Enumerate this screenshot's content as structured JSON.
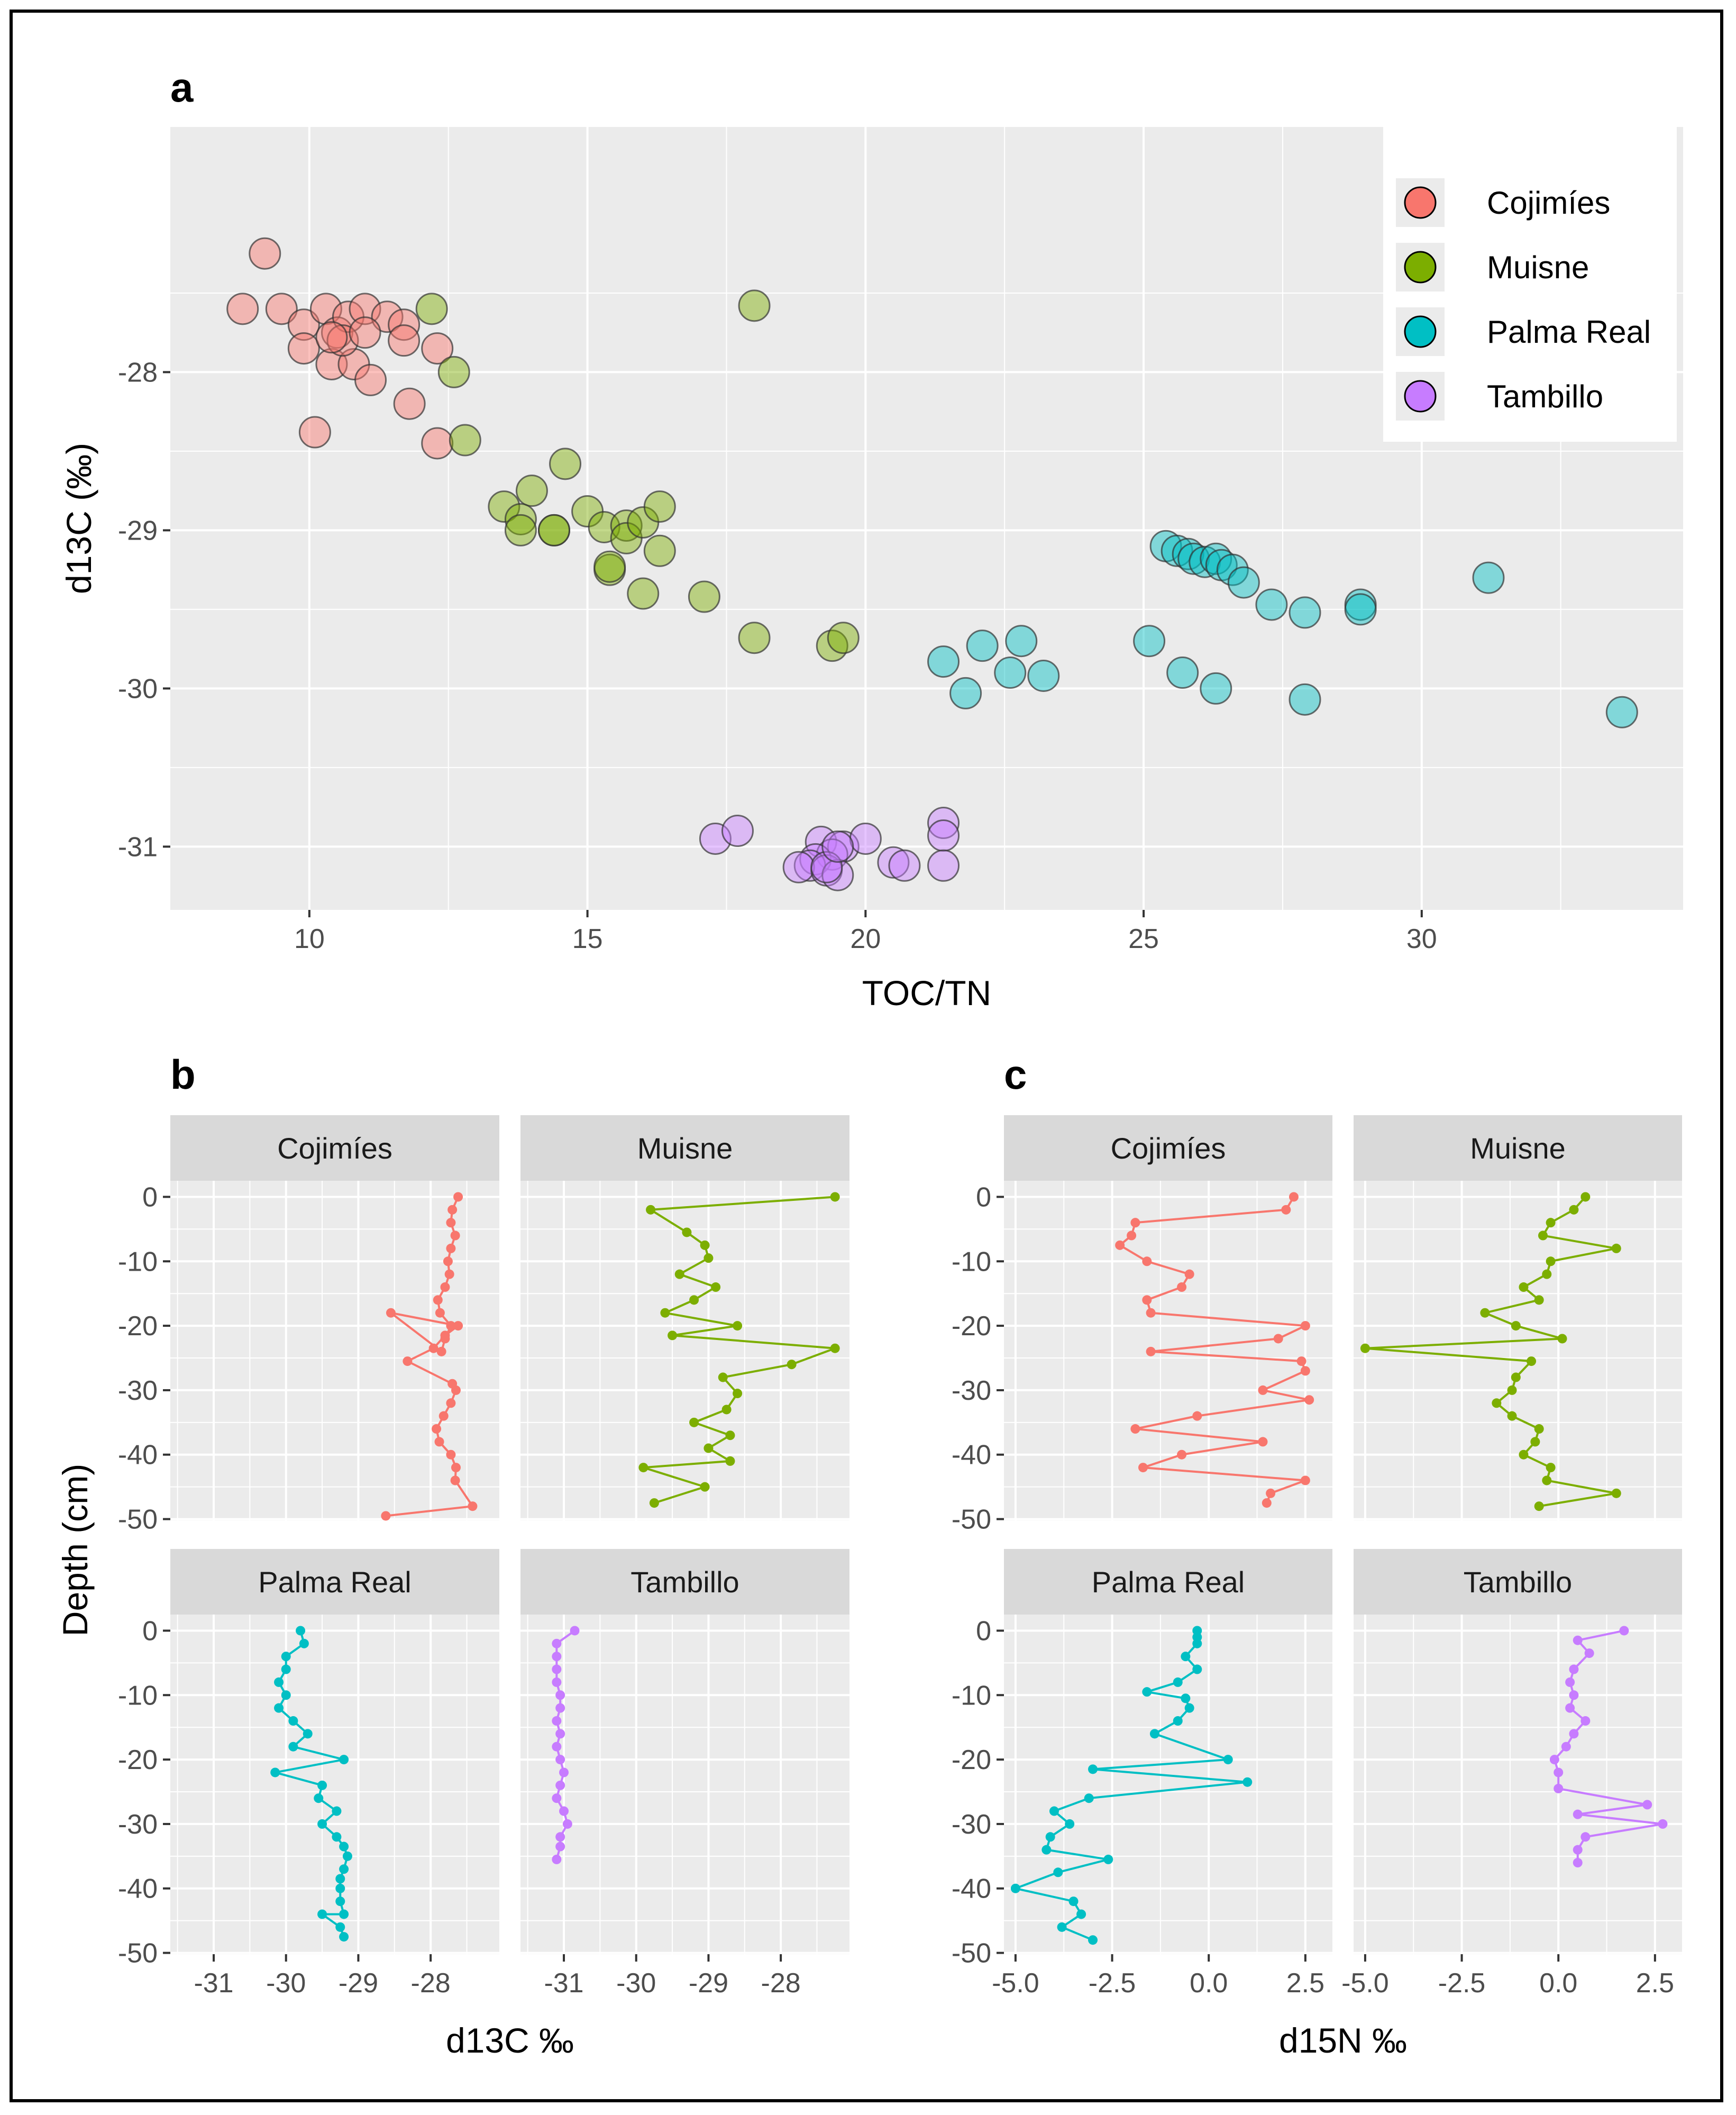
{
  "colors": {
    "Cojimíes": "#F8766D",
    "Muisne": "#7CAE00",
    "Palma Real": "#00BFC4",
    "Tambillo": "#C77CFF"
  },
  "sites": [
    "Cojimíes",
    "Muisne",
    "Palma Real",
    "Tambillo"
  ],
  "chart_data": [
    {
      "id": "a",
      "type": "scatter",
      "panel_label": "a",
      "xlabel": "TOC/TN",
      "ylabel": "d13C (‰)",
      "xlim": [
        7.5,
        34.7
      ],
      "ylim": [
        -31.4,
        -26.45
      ],
      "x_ticks": [
        10,
        15,
        20,
        25,
        30
      ],
      "x_tick_labels": [
        "10",
        "15",
        "20",
        "25",
        "30"
      ],
      "y_ticks": [
        -28,
        -29,
        -30,
        -31
      ],
      "y_tick_labels": [
        "-28",
        "-29",
        "-30",
        "-31"
      ],
      "legend": [
        "Cojimíes",
        "Muisne",
        "Palma Real",
        "Tambillo"
      ],
      "legend_position": "top-right",
      "series": [
        {
          "name": "Cojimíes",
          "points": [
            [
              9.2,
              -27.25
            ],
            [
              8.8,
              -27.6
            ],
            [
              9.5,
              -27.6
            ],
            [
              9.9,
              -27.7
            ],
            [
              10.3,
              -27.6
            ],
            [
              10.5,
              -27.75
            ],
            [
              10.7,
              -27.65
            ],
            [
              11.0,
              -27.6
            ],
            [
              11.4,
              -27.65
            ],
            [
              11.7,
              -27.7
            ],
            [
              9.9,
              -27.85
            ],
            [
              10.4,
              -27.95
            ],
            [
              10.8,
              -27.95
            ],
            [
              11.1,
              -28.05
            ],
            [
              11.7,
              -27.8
            ],
            [
              12.3,
              -27.85
            ],
            [
              11.8,
              -28.2
            ],
            [
              10.1,
              -28.38
            ],
            [
              12.3,
              -28.45
            ],
            [
              10.6,
              -27.8
            ],
            [
              10.4,
              -27.78
            ],
            [
              11.0,
              -27.75
            ]
          ]
        },
        {
          "name": "Muisne",
          "points": [
            [
              12.2,
              -27.6
            ],
            [
              12.6,
              -28.0
            ],
            [
              18.0,
              -27.58
            ],
            [
              12.8,
              -28.43
            ],
            [
              14.6,
              -28.58
            ],
            [
              14.0,
              -28.75
            ],
            [
              13.5,
              -28.85
            ],
            [
              13.8,
              -28.93
            ],
            [
              13.8,
              -29.0
            ],
            [
              14.4,
              -29.0
            ],
            [
              14.4,
              -29.0
            ],
            [
              15.0,
              -28.88
            ],
            [
              15.3,
              -28.98
            ],
            [
              15.7,
              -28.97
            ],
            [
              15.7,
              -29.05
            ],
            [
              16.0,
              -28.95
            ],
            [
              16.3,
              -28.85
            ],
            [
              16.3,
              -29.13
            ],
            [
              15.4,
              -29.25
            ],
            [
              15.4,
              -29.23
            ],
            [
              16.0,
              -29.4
            ],
            [
              17.1,
              -29.42
            ],
            [
              18.0,
              -29.68
            ],
            [
              19.4,
              -29.73
            ],
            [
              19.6,
              -29.68
            ]
          ]
        },
        {
          "name": "Palma Real",
          "points": [
            [
              25.4,
              -29.1
            ],
            [
              25.6,
              -29.13
            ],
            [
              25.8,
              -29.15
            ],
            [
              25.9,
              -29.18
            ],
            [
              26.1,
              -29.2
            ],
            [
              26.3,
              -29.18
            ],
            [
              26.4,
              -29.22
            ],
            [
              26.6,
              -29.25
            ],
            [
              26.8,
              -29.33
            ],
            [
              27.3,
              -29.47
            ],
            [
              27.9,
              -29.52
            ],
            [
              28.9,
              -29.47
            ],
            [
              28.9,
              -29.5
            ],
            [
              31.2,
              -29.3
            ],
            [
              21.4,
              -29.83
            ],
            [
              22.1,
              -29.73
            ],
            [
              22.8,
              -29.7
            ],
            [
              22.6,
              -29.9
            ],
            [
              23.2,
              -29.92
            ],
            [
              25.1,
              -29.7
            ],
            [
              25.7,
              -29.9
            ],
            [
              26.3,
              -30.0
            ],
            [
              21.8,
              -30.03
            ],
            [
              27.9,
              -30.07
            ],
            [
              33.6,
              -30.15
            ]
          ]
        },
        {
          "name": "Tambillo",
          "points": [
            [
              17.3,
              -30.95
            ],
            [
              17.7,
              -30.9
            ],
            [
              19.2,
              -30.97
            ],
            [
              19.6,
              -31.0
            ],
            [
              19.4,
              -31.05
            ],
            [
              19.1,
              -31.08
            ],
            [
              19.0,
              -31.12
            ],
            [
              18.8,
              -31.13
            ],
            [
              19.3,
              -31.15
            ],
            [
              19.5,
              -31.18
            ],
            [
              20.0,
              -30.95
            ],
            [
              20.5,
              -31.1
            ],
            [
              20.7,
              -31.12
            ],
            [
              21.4,
              -30.85
            ],
            [
              21.4,
              -30.93
            ],
            [
              21.4,
              -31.12
            ],
            [
              19.3,
              -31.13
            ],
            [
              19.5,
              -31.0
            ]
          ]
        }
      ]
    },
    {
      "id": "b",
      "type": "line",
      "panel_label": "b",
      "xlabel": "d13C ‰",
      "ylabel": "Depth (cm)",
      "xlim": [
        -31.6,
        -27.05
      ],
      "ylim": [
        -50.2,
        2.5
      ],
      "x_ticks": [
        -31,
        -30,
        -29,
        -28
      ],
      "x_tick_labels": [
        "-31",
        "-30",
        "-29",
        "-28"
      ],
      "y_ticks": [
        0,
        -10,
        -20,
        -30,
        -40,
        -50
      ],
      "y_tick_labels": [
        "0",
        "-10",
        "-20",
        "-30",
        "-40",
        "-50"
      ],
      "facets": [
        {
          "name": "Cojimíes",
          "x": [
            -27.62,
            -27.7,
            -27.72,
            -27.66,
            -27.72,
            -27.76,
            -27.74,
            -27.8,
            -27.9,
            -27.87,
            -27.72,
            -27.8,
            -27.85,
            -28.55,
            -27.62,
            -27.8,
            -27.96,
            -28.32,
            -27.7,
            -27.65,
            -27.72,
            -27.82,
            -27.92,
            -27.88,
            -27.72,
            -27.65,
            -27.66,
            -27.42,
            -28.62
          ],
          "depth": [
            0,
            -2,
            -4,
            -6,
            -8,
            -10,
            -12,
            -14,
            -16,
            -18,
            -20,
            -22,
            -24,
            -18,
            -20,
            -21.5,
            -23.5,
            -25.5,
            -29,
            -30,
            -32,
            -34,
            -36,
            -38,
            -40,
            -42,
            -44,
            -48,
            -49.5
          ]
        },
        {
          "name": "Muisne",
          "x": [
            -27.25,
            -29.8,
            -29.3,
            -29.05,
            -29.0,
            -29.4,
            -28.9,
            -29.2,
            -29.6,
            -28.6,
            -29.5,
            -27.25,
            -27.85,
            -28.8,
            -28.6,
            -28.75,
            -29.2,
            -28.7,
            -29.0,
            -28.7,
            -29.9,
            -29.05,
            -29.75
          ],
          "depth": [
            0,
            -2,
            -5.5,
            -7.5,
            -9.5,
            -12,
            -14,
            -16,
            -18,
            -20,
            -21.5,
            -23.5,
            -26,
            -28,
            -30.5,
            -33,
            -35,
            -37,
            -39,
            -41,
            -42,
            -45,
            -47.5
          ]
        },
        {
          "name": "Palma Real",
          "x": [
            -29.8,
            -29.75,
            -30.0,
            -30.0,
            -30.1,
            -30.0,
            -30.1,
            -29.9,
            -29.7,
            -29.9,
            -29.2,
            -30.15,
            -29.5,
            -29.55,
            -29.3,
            -29.5,
            -29.3,
            -29.2,
            -29.15,
            -29.2,
            -29.25,
            -29.25,
            -29.25,
            -29.2,
            -29.5,
            -29.25,
            -29.2
          ],
          "depth": [
            0,
            -2,
            -4,
            -6,
            -8,
            -10,
            -12,
            -14,
            -16,
            -18,
            -20,
            -22,
            -24,
            -26,
            -28,
            -30,
            -32,
            -33.5,
            -35,
            -37,
            -38.5,
            -40,
            -42,
            -44,
            -44,
            -46,
            -47.5
          ]
        },
        {
          "name": "Tambillo",
          "x": [
            -30.85,
            -31.1,
            -31.1,
            -31.1,
            -31.1,
            -31.05,
            -31.05,
            -31.1,
            -31.05,
            -31.1,
            -31.05,
            -31.0,
            -31.05,
            -31.1,
            -31.0,
            -30.95,
            -31.05,
            -31.05,
            -31.1
          ],
          "depth": [
            0,
            -2,
            -4,
            -6,
            -8,
            -10,
            -12,
            -14,
            -16,
            -18,
            -20,
            -22,
            -24,
            -26,
            -28,
            -30,
            -32,
            -33.5,
            -35.5
          ]
        }
      ]
    },
    {
      "id": "c",
      "type": "line",
      "panel_label": "c",
      "xlabel": "d15N ‰",
      "ylabel": "",
      "xlim": [
        -5.3,
        3.2
      ],
      "ylim": [
        -50.2,
        2.5
      ],
      "x_ticks": [
        -5.0,
        -2.5,
        0.0,
        2.5
      ],
      "x_tick_labels": [
        "-5.0",
        "-2.5",
        "0.0",
        "2.5"
      ],
      "y_ticks": [
        0,
        -10,
        -20,
        -30,
        -40,
        -50
      ],
      "y_tick_labels": [
        "0",
        "-10",
        "-20",
        "-30",
        "-40",
        "-50"
      ],
      "facets": [
        {
          "name": "Cojimíes",
          "x": [
            2.2,
            2.0,
            -1.9,
            -2.0,
            -2.3,
            -1.6,
            -0.5,
            -0.7,
            -1.6,
            -1.5,
            2.5,
            1.8,
            -1.5,
            2.4,
            2.5,
            1.4,
            2.6,
            -0.3,
            -1.9,
            1.4,
            -0.7,
            -1.7,
            2.5,
            1.6,
            1.5
          ],
          "depth": [
            0,
            -2,
            -4,
            -6,
            -7.5,
            -10,
            -12,
            -14,
            -16,
            -18,
            -20,
            -22,
            -24,
            -25.5,
            -27,
            -30,
            -31.5,
            -34,
            -36,
            -38,
            -40,
            -42,
            -44,
            -46,
            -47.5
          ]
        },
        {
          "name": "Muisne",
          "x": [
            0.7,
            0.4,
            -0.2,
            -0.4,
            1.5,
            -0.2,
            -0.3,
            -0.9,
            -0.5,
            -1.9,
            -1.1,
            0.1,
            -5.0,
            -0.7,
            -1.1,
            -1.2,
            -1.6,
            -1.2,
            -0.5,
            -0.6,
            -0.9,
            -0.2,
            -0.3,
            1.5,
            -0.5
          ],
          "depth": [
            0,
            -2,
            -4,
            -6,
            -8,
            -10,
            -12,
            -14,
            -16,
            -18,
            -20,
            -22,
            -23.5,
            -25.5,
            -28,
            -30,
            -32,
            -34,
            -36,
            -38,
            -40,
            -42,
            -44,
            -46,
            -48
          ]
        },
        {
          "name": "Palma Real",
          "x": [
            -0.3,
            -0.3,
            -0.3,
            -0.6,
            -0.3,
            -0.8,
            -1.6,
            -0.6,
            -0.5,
            -0.8,
            -1.4,
            0.5,
            -3.0,
            1.0,
            -3.1,
            -4.0,
            -3.6,
            -4.1,
            -4.2,
            -2.6,
            -3.9,
            -5.0,
            -3.5,
            -3.3,
            -3.8,
            -3.0
          ],
          "depth": [
            0,
            -1,
            -2,
            -4,
            -6,
            -8,
            -9.5,
            -10.5,
            -12,
            -14,
            -16,
            -20,
            -21.5,
            -23.5,
            -26,
            -28,
            -30,
            -32,
            -34,
            -35.5,
            -37.5,
            -40,
            -42,
            -44,
            -46,
            -48
          ]
        },
        {
          "name": "Tambillo",
          "x": [
            1.7,
            0.5,
            0.8,
            0.4,
            0.3,
            0.4,
            0.3,
            0.7,
            0.4,
            0.2,
            -0.1,
            0.0,
            0.0,
            2.3,
            0.5,
            2.7,
            0.7,
            0.5,
            0.5
          ],
          "depth": [
            0,
            -1.5,
            -3.5,
            -6,
            -8,
            -10,
            -12,
            -14,
            -16,
            -18,
            -20,
            -22,
            -24.5,
            -27,
            -28.5,
            -30,
            -32,
            -34,
            -36
          ]
        }
      ]
    }
  ]
}
